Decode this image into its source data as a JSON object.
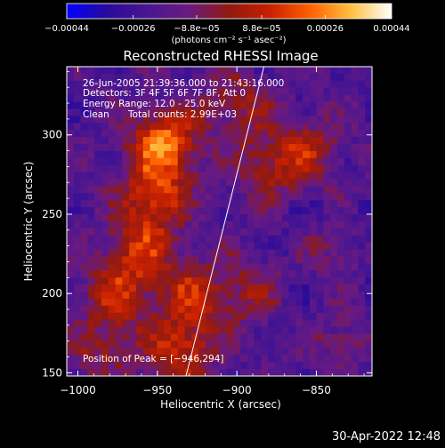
{
  "chart_data": {
    "type": "heatmap",
    "title": "Reconstructed RHESSI Image",
    "xlabel": "Heliocentric X (arcsec)",
    "ylabel": "Heliocentric Y (arcsec)",
    "xlim": [
      -1007,
      -815
    ],
    "ylim": [
      148,
      343
    ],
    "x_ticks": [
      -1000,
      -950,
      -900,
      -850
    ],
    "x_tick_labels": [
      "−1000",
      "−950",
      "−900",
      "−850"
    ],
    "y_ticks": [
      150,
      200,
      250,
      300
    ],
    "y_tick_labels": [
      "150",
      "200",
      "250",
      "300"
    ],
    "colorbar": {
      "range": [
        -0.00044,
        0.00044
      ],
      "ticks": [
        -0.00044,
        -0.00026,
        -8.8e-05,
        8.8e-05,
        0.00026,
        0.00044
      ],
      "tick_labels": [
        "−0.00044",
        "−0.00026",
        "−8.8e−05",
        "8.8e−05",
        "0.00026",
        "0.00044"
      ],
      "units_label": "(photons cm⁻² s⁻¹ asec⁻²)",
      "colormap": [
        "#0000ff",
        "#2a0a9a",
        "#4a1690",
        "#6a1a80",
        "#901a10",
        "#c82000",
        "#ff6000",
        "#ffc040",
        "#ffffff"
      ]
    },
    "annotations": {
      "time_range": "26-Jun-2005 21:39:36.000 to 21:43:16.000",
      "detectors": "Detectors: 3F 4F 5F 6F 7F 8F, Att 0",
      "energy_range": "Energy Range: 12.0 - 25.0 keV",
      "method": "Clean",
      "total_counts": "Total counts: 2.99E+03",
      "peak_label": "Position of Peak = [−946,294]"
    },
    "peak_position": [
      -946,
      294
    ],
    "limb_line": {
      "from": [
        -932,
        148
      ],
      "to": [
        -883,
        343
      ]
    },
    "source_regions": [
      {
        "x": -946,
        "y": 294,
        "intensity": 1.0
      },
      {
        "x": -952,
        "y": 260,
        "intensity": 0.7
      },
      {
        "x": -962,
        "y": 228,
        "intensity": 0.6
      },
      {
        "x": -975,
        "y": 200,
        "intensity": 0.55
      },
      {
        "x": -930,
        "y": 200,
        "intensity": 0.55
      },
      {
        "x": -935,
        "y": 165,
        "intensity": 0.7
      },
      {
        "x": -985,
        "y": 165,
        "intensity": 0.4
      },
      {
        "x": -900,
        "y": 320,
        "intensity": 0.45
      },
      {
        "x": -880,
        "y": 280,
        "intensity": 0.5
      },
      {
        "x": -855,
        "y": 290,
        "intensity": 0.45
      },
      {
        "x": -842,
        "y": 225,
        "intensity": 0.35
      },
      {
        "x": -895,
        "y": 200,
        "intensity": 0.4
      },
      {
        "x": -835,
        "y": 175,
        "intensity": 0.3
      }
    ]
  },
  "footer": {
    "timestamp": "30-Apr-2022 12:48"
  }
}
